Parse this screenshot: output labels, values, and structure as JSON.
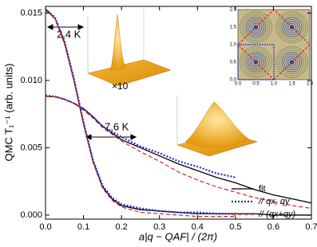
{
  "chart_data": {
    "type": "line",
    "x_label": "a|q − QAF| / (2π)",
    "y_label": "QMC T₁⁻¹ (arb. units)",
    "x": [
      0,
      0.025,
      0.05,
      0.075,
      0.1,
      0.125,
      0.15,
      0.175,
      0.2,
      0.25,
      0.3,
      0.35,
      0.4,
      0.45,
      0.5,
      0.55,
      0.6,
      0.65,
      0.7
    ],
    "series": [
      {
        "name": "fit",
        "color": "#000000",
        "style": "solid",
        "values": [
          0.0088,
          0.0088,
          0.0086,
          0.0083,
          0.0079,
          0.0073,
          0.0066,
          0.0061,
          0.0056,
          0.005,
          0.0044,
          0.0038,
          0.0033,
          0.0028,
          0.0024,
          0.0019,
          0.0015,
          0.0012,
          0.0009
        ],
        "values_low": [
          0.0153,
          0.0146,
          0.0128,
          0.01,
          0.0068,
          0.004,
          0.0021,
          0.0012,
          0.0007,
          0.0004,
          0.0003,
          0.0002,
          0.0001,
          0.0001,
          0.0001,
          0.0001,
          0,
          0,
          0
        ]
      },
      {
        "name": "// qx, qy",
        "color": "#1f2fd6",
        "style": "dotted",
        "values": [
          0.0089,
          0.0088,
          0.0086,
          0.0083,
          0.0079,
          0.0073,
          0.0066,
          0.0062,
          0.0058,
          0.0051,
          0.0046,
          0.004,
          0.0036,
          0.0031,
          0.0028,
          null,
          null,
          null,
          null
        ],
        "values_low": [
          0.0153,
          0.0147,
          0.0129,
          0.0101,
          0.0069,
          0.0041,
          0.0022,
          0.0013,
          0.0008,
          0.0005,
          0.0003,
          0.0002,
          0.0002,
          0.0001,
          0.0001,
          null,
          null,
          null,
          null
        ]
      },
      {
        "name": "// (qx+qy)",
        "color": "#e0201a",
        "style": "dashed",
        "values": [
          0.0088,
          0.0088,
          0.0086,
          0.0083,
          0.0078,
          0.0072,
          0.0065,
          0.006,
          0.0055,
          0.0047,
          0.004,
          0.0032,
          0.0026,
          0.0021,
          0.0017,
          0.0013,
          0.001,
          0.0007,
          0.0005
        ],
        "values_low": [
          0.0152,
          0.0146,
          0.0127,
          0.0099,
          0.0067,
          0.0039,
          0.002,
          0.0011,
          0.0006,
          0.0002,
          0.0001,
          0,
          -0.0001,
          -0.0001,
          -0.0001,
          null,
          null,
          null,
          null
        ]
      }
    ],
    "xlim": [
      0,
      0.7
    ],
    "xticks": [
      {
        "value": 0,
        "label": "0.0"
      },
      0.1,
      0.2,
      0.3,
      0.4,
      0.5,
      0.6,
      0.7
    ],
    "ylim": [
      -0.0003,
      0.0155
    ],
    "yticks": [
      {
        "value": 0,
        "label": "0.000"
      },
      {
        "value": 0.005,
        "label": "0.005"
      },
      {
        "value": 0.01,
        "label": "0.010"
      },
      {
        "value": 0.015,
        "label": "0.015"
      }
    ],
    "annotations": [
      "2.4 K",
      "7.6 K",
      "×10"
    ],
    "inset_ticks": [
      "0.0",
      "0.5",
      "1.0",
      "1.5",
      "2.0"
    ]
  }
}
